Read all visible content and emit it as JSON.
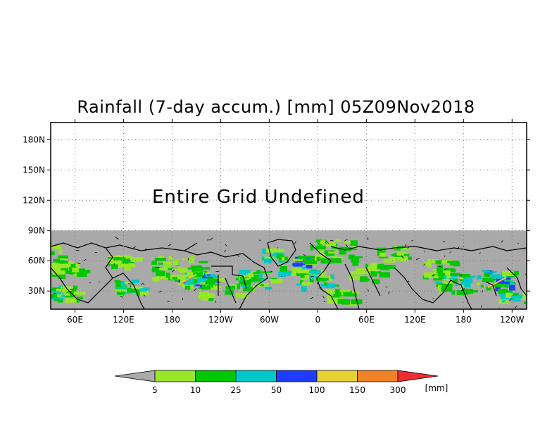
{
  "title": "Rainfall (7-day accum.) [mm] 05Z09Nov2018",
  "map": {
    "overlay_text": "Entire Grid Undefined",
    "lat_labels": [
      "180N",
      "150N",
      "120N",
      "90N",
      "60N",
      "30N"
    ],
    "lat_values": [
      180,
      150,
      120,
      90,
      60,
      30
    ],
    "lon_labels": [
      "60E",
      "120E",
      "180",
      "120W",
      "60W",
      "0",
      "60E",
      "120E",
      "180",
      "120W"
    ],
    "lon_values": [
      60,
      120,
      180,
      240,
      300,
      360,
      420,
      480,
      540,
      600
    ],
    "lon_range": [
      30,
      618
    ],
    "lat_range": [
      12,
      197
    ],
    "data_lat_max": 90,
    "grid": true,
    "undefined_color": "#a9a9a9"
  },
  "colorbar": {
    "colors": [
      "#aaaaaa",
      "#98e62a",
      "#00c800",
      "#00c8c8",
      "#1e3cff",
      "#e6d232",
      "#f08228",
      "#ef2d32"
    ],
    "labels": [
      "5",
      "10",
      "25",
      "50",
      "100",
      "150",
      "300"
    ],
    "unit": "[mm]"
  }
}
